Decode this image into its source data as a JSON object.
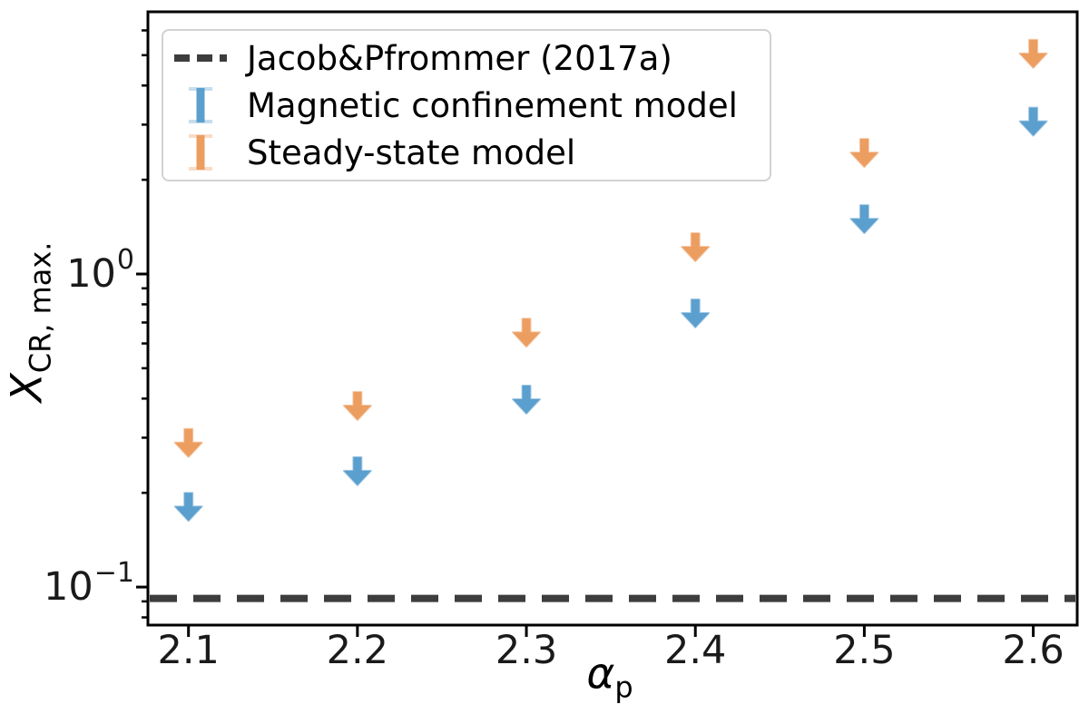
{
  "chart_data": {
    "type": "scatter",
    "subtype": "upper-limit-arrows",
    "title": "",
    "xlabel": {
      "symbol": "α",
      "subscript": "p"
    },
    "ylabel": {
      "symbol": "X",
      "subscript": "CR, max."
    },
    "x_scale": "linear",
    "y_scale": "log",
    "xlim": [
      2.076,
      2.626
    ],
    "ylim": [
      0.0756,
      6.88
    ],
    "grid": false,
    "x_ticks": [
      {
        "value": 2.1,
        "label": "2.1"
      },
      {
        "value": 2.2,
        "label": "2.2"
      },
      {
        "value": 2.3,
        "label": "2.3"
      },
      {
        "value": 2.4,
        "label": "2.4"
      },
      {
        "value": 2.5,
        "label": "2.5"
      },
      {
        "value": 2.6,
        "label": "2.6"
      }
    ],
    "y_ticks": [
      {
        "value": 1,
        "mantissa": "10",
        "exponent": "0"
      },
      {
        "value": 0.1,
        "mantissa": "10",
        "exponent": "−1"
      }
    ],
    "reference_line": {
      "label": "Jacob&Pfrommer (2017a)",
      "value": 0.092,
      "style": "dashed",
      "color": "#3d3d3d"
    },
    "series": [
      {
        "name": "Magnetic confinement model",
        "marker": "downward-arrow-upper-limit",
        "color": "#5b9fce",
        "x": [
          2.1,
          2.2,
          2.3,
          2.4,
          2.5,
          2.6
        ],
        "y_upper_limits": [
          0.2,
          0.26,
          0.44,
          0.83,
          1.66,
          3.4
        ]
      },
      {
        "name": "Steady-state model",
        "marker": "downward-arrow-upper-limit",
        "color": "#ec9d60",
        "x": [
          2.1,
          2.2,
          2.3,
          2.4,
          2.5,
          2.6
        ],
        "y_upper_limits": [
          0.32,
          0.42,
          0.72,
          1.35,
          2.7,
          5.6
        ]
      }
    ],
    "legend": {
      "position": "upper left",
      "items": [
        {
          "label": "Jacob&Pfrommer (2017a)",
          "sample": "dashed-line",
          "color": "#3d3d3d"
        },
        {
          "label": "Magnetic confinement model",
          "sample": "vertical-bar",
          "color": "#5b9fce"
        },
        {
          "label": "Steady-state model",
          "sample": "vertical-bar",
          "color": "#ec9d60"
        }
      ]
    }
  }
}
